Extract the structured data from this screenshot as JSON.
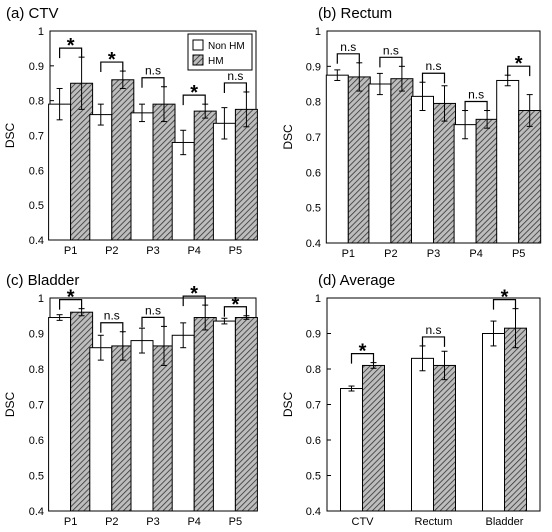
{
  "legend": {
    "labels": [
      "Non HM",
      "HM"
    ]
  },
  "colors": {
    "non_hm_fill": "#ffffff",
    "hm_fill": "#bdbdbd",
    "hatch": "#333333",
    "stroke": "#000000"
  },
  "chart_data": [
    {
      "type": "bar",
      "title": "(a) CTV",
      "ylabel": "DSC",
      "xlabel": "",
      "ylim": [
        0.4,
        1.0
      ],
      "yticks": [
        "0.4",
        "0.5",
        "0.6",
        "0.7",
        "0.8",
        "0.9",
        "1"
      ],
      "categories": [
        "P1",
        "P2",
        "P3",
        "P4",
        "P5"
      ],
      "legend_position": "top-right",
      "series": [
        {
          "name": "Non HM",
          "values": [
            0.79,
            0.76,
            0.765,
            0.68,
            0.735
          ],
          "errors": [
            0.045,
            0.03,
            0.025,
            0.035,
            0.045
          ]
        },
        {
          "name": "HM",
          "values": [
            0.85,
            0.86,
            0.79,
            0.77,
            0.775
          ],
          "errors": [
            0.075,
            0.025,
            0.05,
            0.02,
            0.05
          ]
        }
      ],
      "annotations": [
        "*",
        "*",
        "n.s",
        "*",
        "n.s"
      ]
    },
    {
      "type": "bar",
      "title": "(b) Rectum",
      "ylabel": "DSC",
      "xlabel": "",
      "ylim": [
        0.4,
        1.0
      ],
      "yticks": [
        "0.4",
        "0.5",
        "0.6",
        "0.7",
        "0.8",
        "0.9",
        "1"
      ],
      "categories": [
        "P1",
        "P2",
        "P3",
        "P4",
        "P5"
      ],
      "series": [
        {
          "name": "Non HM",
          "values": [
            0.875,
            0.85,
            0.815,
            0.735,
            0.86
          ],
          "errors": [
            0.015,
            0.03,
            0.04,
            0.04,
            0.015
          ]
        },
        {
          "name": "HM",
          "values": [
            0.87,
            0.865,
            0.795,
            0.75,
            0.775
          ],
          "errors": [
            0.04,
            0.035,
            0.05,
            0.025,
            0.045
          ]
        }
      ],
      "annotations": [
        "n.s",
        "n.s",
        "n.s",
        "n.s",
        "*"
      ]
    },
    {
      "type": "bar",
      "title": "(c) Bladder",
      "ylabel": "DSC",
      "xlabel": "",
      "ylim": [
        0.4,
        1.0
      ],
      "yticks": [
        "0.4",
        "0.5",
        "0.6",
        "0.7",
        "0.8",
        "0.9",
        "1"
      ],
      "categories": [
        "P1",
        "P2",
        "P3",
        "P4",
        "P5"
      ],
      "series": [
        {
          "name": "Non HM",
          "values": [
            0.945,
            0.86,
            0.88,
            0.895,
            0.935
          ],
          "errors": [
            0.008,
            0.035,
            0.035,
            0.035,
            0.008
          ]
        },
        {
          "name": "HM",
          "values": [
            0.96,
            0.865,
            0.865,
            0.945,
            0.945
          ],
          "errors": [
            0.01,
            0.04,
            0.055,
            0.035,
            0.005
          ]
        }
      ],
      "annotations": [
        "*",
        "n.s",
        "n.s",
        "*",
        "*"
      ]
    },
    {
      "type": "bar",
      "title": "(d) Average",
      "ylabel": "DSC",
      "xlabel": "",
      "ylim": [
        0.4,
        1.0
      ],
      "yticks": [
        "0.4",
        "0.5",
        "0.6",
        "0.7",
        "0.8",
        "0.9",
        "1"
      ],
      "categories": [
        "CTV",
        "Rectum",
        "Bladder"
      ],
      "series": [
        {
          "name": "Non HM",
          "values": [
            0.745,
            0.83,
            0.9
          ],
          "errors": [
            0.007,
            0.035,
            0.035
          ]
        },
        {
          "name": "HM",
          "values": [
            0.81,
            0.81,
            0.915
          ],
          "errors": [
            0.008,
            0.04,
            0.055
          ]
        }
      ],
      "annotations": [
        "*",
        "n.s",
        "*"
      ]
    }
  ]
}
